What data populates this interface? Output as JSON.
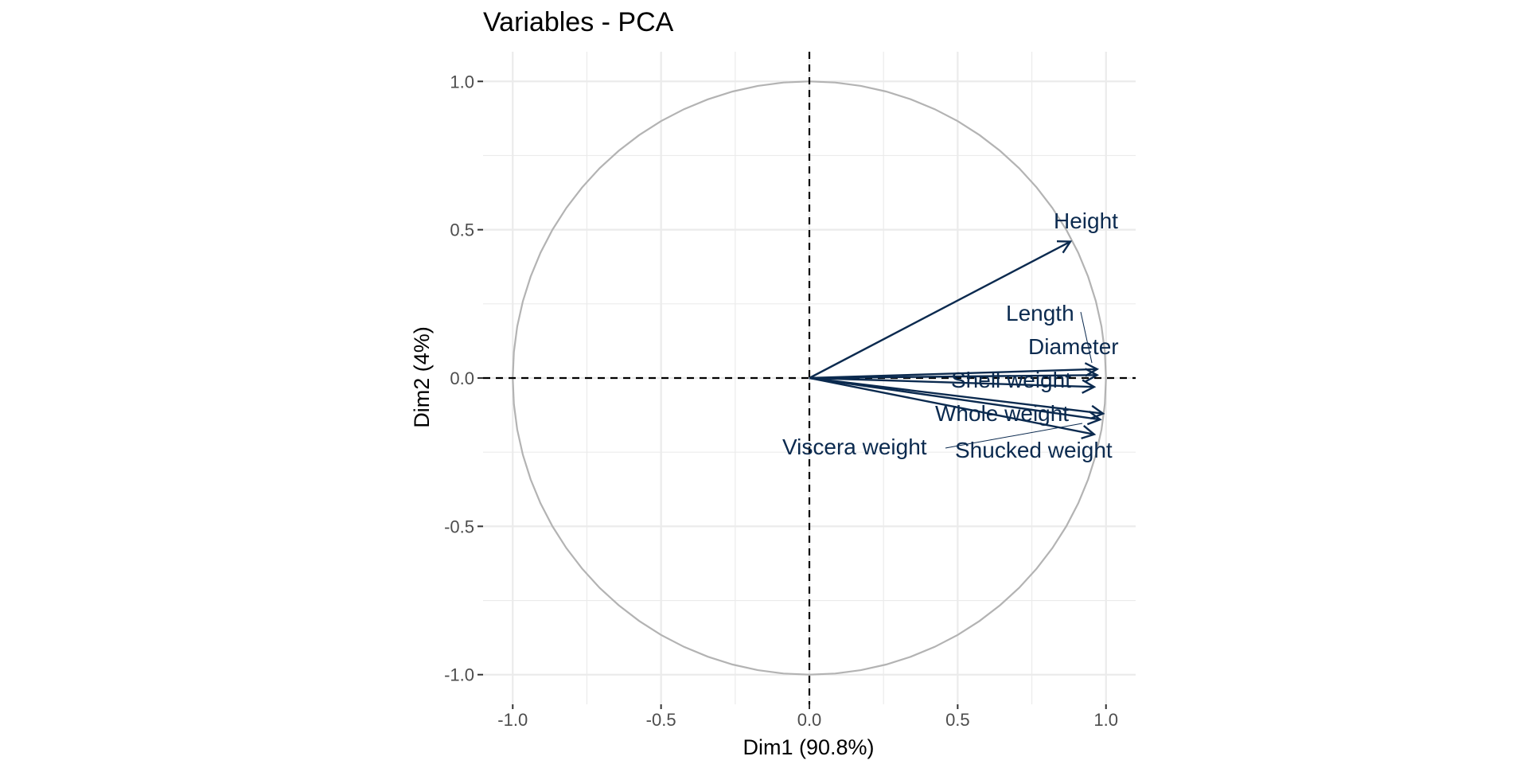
{
  "chart_data": {
    "type": "scatter",
    "subtype": "pca-variable-correlation-circle",
    "title": "Variables - PCA",
    "xlabel": "Dim1 (90.8%)",
    "ylabel": "Dim2 (4%)",
    "xlim": [
      -1.1,
      1.1
    ],
    "ylim": [
      -1.1,
      1.1
    ],
    "x_ticks": [
      -1.0,
      -0.5,
      0.0,
      0.5,
      1.0
    ],
    "y_ticks": [
      -1.0,
      -0.5,
      0.0,
      0.5,
      1.0
    ],
    "x_tick_labels": [
      "-1.0",
      "-0.5",
      "0.0",
      "0.5",
      "1.0"
    ],
    "y_tick_labels": [
      "-1.0",
      "-0.5",
      "0.0",
      "0.5",
      "1.0"
    ],
    "grid": true,
    "legend": "none",
    "colors": {
      "arrow": "#0b2a4f",
      "circle": "#b3b3b3",
      "grid": "#ebebeb",
      "reference_line": "#000000"
    },
    "variables": [
      {
        "name": "Height",
        "x": 0.88,
        "y": 0.46
      },
      {
        "name": "Length",
        "x": 0.97,
        "y": 0.03
      },
      {
        "name": "Diameter",
        "x": 0.97,
        "y": 0.01
      },
      {
        "name": "Shell weight",
        "x": 0.96,
        "y": -0.03
      },
      {
        "name": "Whole weight",
        "x": 0.99,
        "y": -0.12
      },
      {
        "name": "Viscera weight",
        "x": 0.98,
        "y": -0.14
      },
      {
        "name": "Shucked weight",
        "x": 0.96,
        "y": -0.19
      }
    ]
  }
}
